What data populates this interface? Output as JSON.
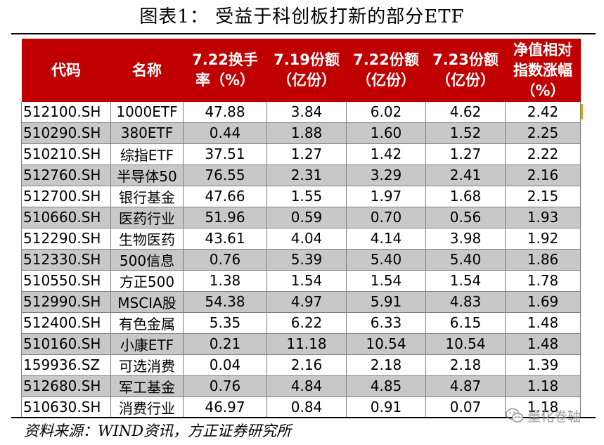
{
  "title": "图表1：  受益于科创板打新的部分ETF",
  "table": {
    "headers": [
      "代码",
      "名称",
      "7.22换手率（%）",
      "7.19份额（亿份）",
      "7.22份额（亿份）",
      "7.23份额（亿份）",
      "净值相对指数涨幅（%）"
    ],
    "header_lines": [
      [
        "代码"
      ],
      [
        "名称"
      ],
      [
        "7.22换手",
        "率（%）"
      ],
      [
        "7.19份额",
        "（亿份）"
      ],
      [
        "7.22份额",
        "（亿份）"
      ],
      [
        "7.23份额",
        "（亿份）"
      ],
      [
        "净值相对",
        "指数涨幅",
        "（%）"
      ]
    ],
    "rows": [
      [
        "512100.SH",
        "1000ETF",
        "47.88",
        "3.84",
        "6.02",
        "4.62",
        "2.42"
      ],
      [
        "510290.SH",
        "380ETF",
        "0.44",
        "1.88",
        "1.60",
        "1.52",
        "2.25"
      ],
      [
        "510210.SH",
        "综指ETF",
        "37.51",
        "1.27",
        "1.42",
        "1.27",
        "2.22"
      ],
      [
        "512760.SH",
        "半导体50",
        "76.55",
        "2.31",
        "3.29",
        "2.41",
        "2.16"
      ],
      [
        "512700.SH",
        "银行基金",
        "47.66",
        "1.55",
        "1.97",
        "1.68",
        "2.15"
      ],
      [
        "510660.SH",
        "医药行业",
        "51.96",
        "0.59",
        "0.70",
        "0.56",
        "1.93"
      ],
      [
        "512290.SH",
        "生物医药",
        "43.61",
        "4.04",
        "4.14",
        "3.98",
        "1.92"
      ],
      [
        "512330.SH",
        "500信息",
        "0.76",
        "5.39",
        "5.40",
        "5.40",
        "1.86"
      ],
      [
        "510550.SH",
        "方正500",
        "1.38",
        "1.54",
        "1.54",
        "1.54",
        "1.78"
      ],
      [
        "512990.SH",
        "MSCIA股",
        "54.38",
        "4.97",
        "5.91",
        "4.83",
        "1.69"
      ],
      [
        "512400.SH",
        "有色金属",
        "5.35",
        "6.22",
        "6.33",
        "6.15",
        "1.48"
      ],
      [
        "510160.SH",
        "小康ETF",
        "0.21",
        "11.18",
        "10.54",
        "10.54",
        "1.48"
      ],
      [
        "159936.SZ",
        "可选消费",
        "0.04",
        "2.16",
        "2.18",
        "2.18",
        "1.39"
      ],
      [
        "512680.SH",
        "军工基金",
        "0.76",
        "4.84",
        "4.85",
        "4.87",
        "1.18"
      ],
      [
        "510630.SH",
        "消费行业",
        "46.97",
        "0.84",
        "0.91",
        "0.07",
        "1.18"
      ]
    ]
  },
  "source": "资料来源：WIND资讯，方正证券研究所",
  "watermark": {
    "text": "量化卷轴",
    "icon": "wechat-icon"
  },
  "colors": {
    "header_bg": "#c00000",
    "header_text": "#ffffff",
    "stripe": "#c8c8c8",
    "accent": "#f4a100"
  }
}
